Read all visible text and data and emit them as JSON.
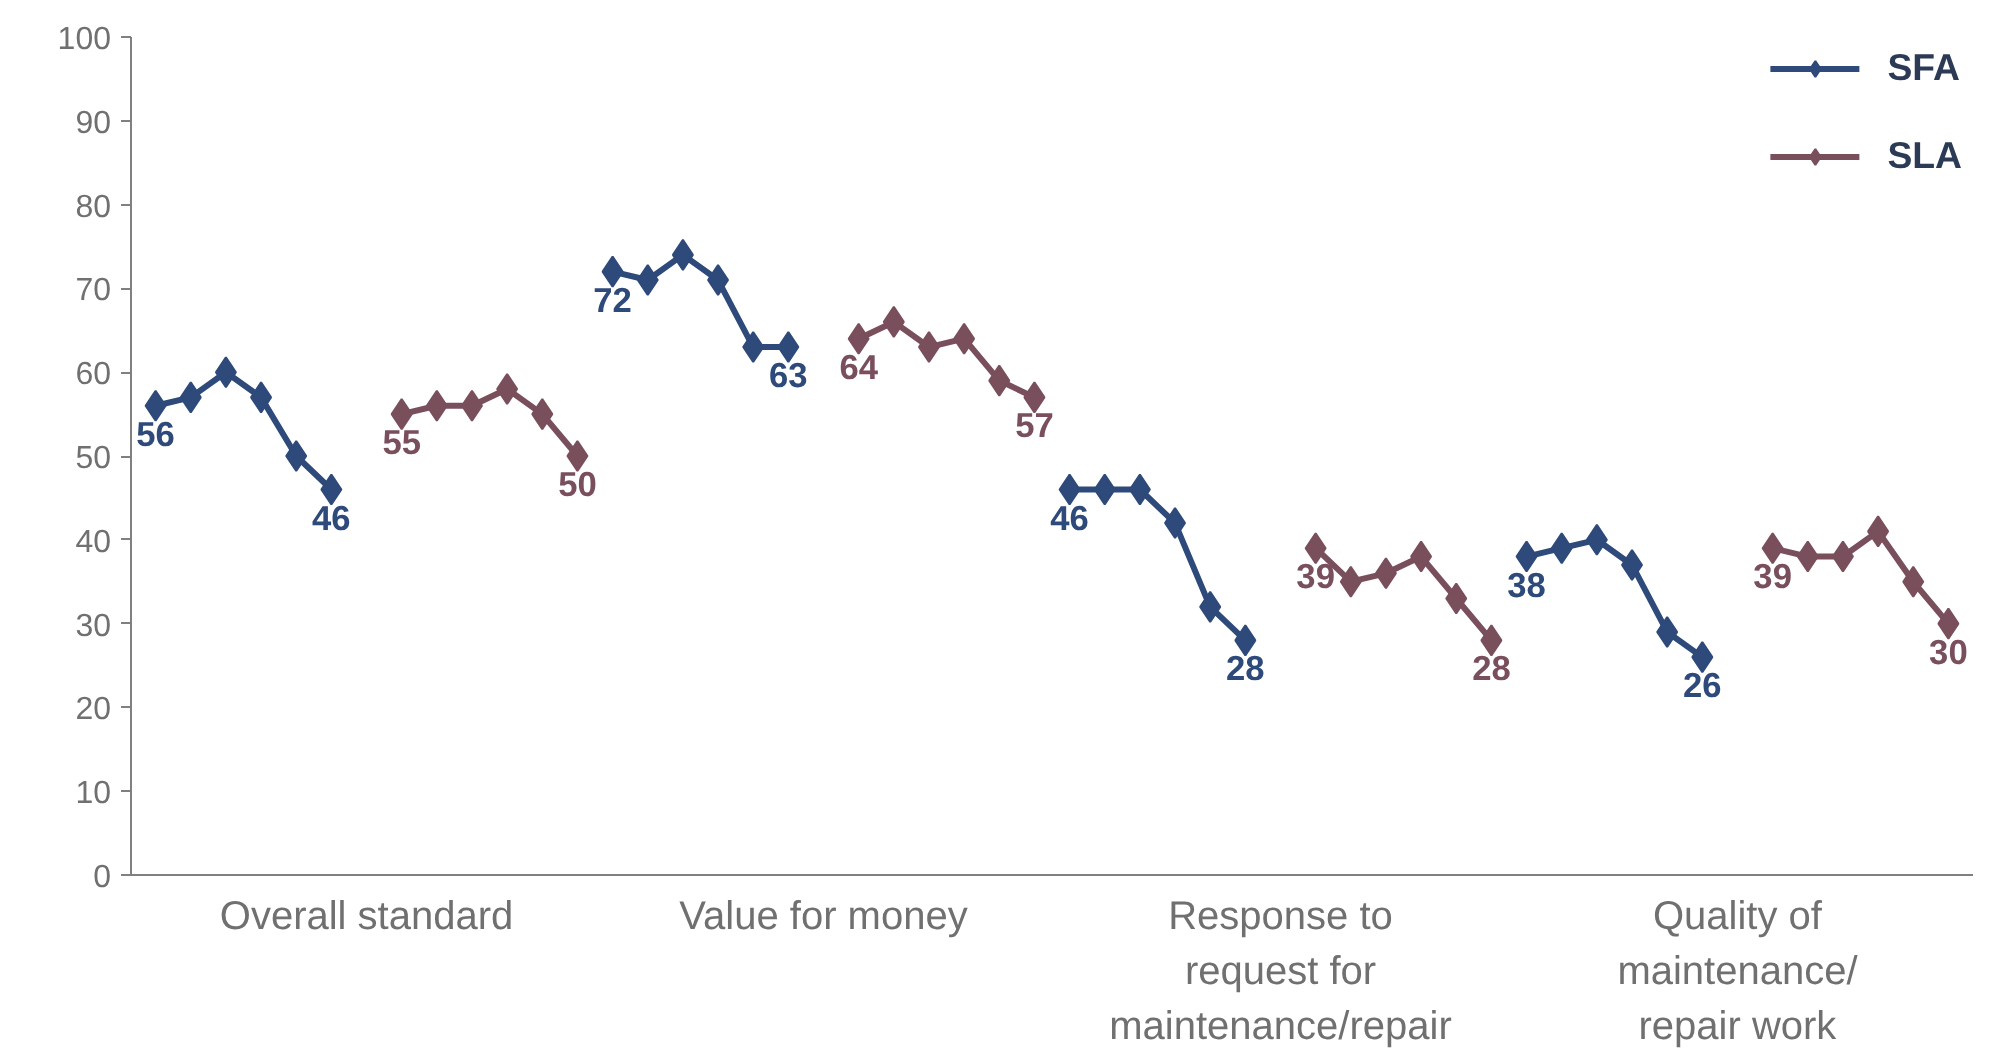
{
  "chart_data": {
    "type": "line",
    "categories": [
      null,
      null,
      null,
      null,
      null,
      null,
      "Overall standard",
      null,
      null,
      null,
      null,
      null,
      null,
      null,
      null,
      null,
      null,
      null,
      null,
      "Value for money",
      null,
      null,
      null,
      null,
      null,
      null,
      null,
      null,
      null,
      null,
      null,
      null,
      "Response to request for maintenance/repair",
      null,
      null,
      null,
      null,
      null,
      null,
      null,
      null,
      null,
      null,
      null,
      null,
      "Quality of maintenance/ repair work",
      null,
      null,
      null,
      null,
      null,
      null
    ],
    "ylim": [
      0,
      100
    ],
    "yticks": [
      0,
      10,
      20,
      30,
      40,
      50,
      60,
      70,
      80,
      90,
      100
    ],
    "marker": "diamond",
    "legend": "top right",
    "series": [
      {
        "name": "SFA",
        "color": "#2e4a7a",
        "values": [
          56,
          57,
          60,
          57,
          50,
          46,
          null,
          null,
          null,
          null,
          null,
          null,
          null,
          72,
          71,
          74,
          71,
          63,
          63,
          null,
          null,
          null,
          null,
          null,
          null,
          null,
          46,
          46,
          46,
          42,
          32,
          28,
          null,
          null,
          null,
          null,
          null,
          null,
          null,
          38,
          39,
          40,
          37,
          29,
          26,
          null,
          null,
          null,
          null,
          null,
          null,
          null
        ],
        "value_labels": [
          "56",
          null,
          null,
          null,
          null,
          "46",
          null,
          null,
          null,
          null,
          null,
          null,
          null,
          "72",
          null,
          null,
          null,
          null,
          "63",
          null,
          null,
          null,
          null,
          null,
          null,
          null,
          "46",
          null,
          null,
          null,
          null,
          "28",
          null,
          null,
          null,
          null,
          null,
          null,
          null,
          "38",
          null,
          null,
          null,
          null,
          "26",
          null,
          null,
          null,
          null,
          null,
          null,
          null
        ]
      },
      {
        "name": "SLA",
        "color": "#7a4f5c",
        "values": [
          null,
          null,
          null,
          null,
          null,
          null,
          null,
          55,
          56,
          56,
          58,
          55,
          50,
          null,
          null,
          null,
          null,
          null,
          null,
          null,
          64,
          66,
          63,
          64,
          59,
          57,
          null,
          null,
          null,
          null,
          null,
          null,
          null,
          39,
          35,
          36,
          38,
          33,
          28,
          null,
          null,
          null,
          null,
          null,
          null,
          null,
          39,
          38,
          38,
          41,
          35,
          30
        ],
        "value_labels": [
          null,
          null,
          null,
          null,
          null,
          null,
          null,
          "55",
          null,
          null,
          null,
          null,
          "50",
          null,
          null,
          null,
          null,
          null,
          null,
          null,
          "64",
          null,
          null,
          null,
          null,
          "57",
          null,
          null,
          null,
          null,
          null,
          null,
          null,
          "39",
          null,
          null,
          null,
          null,
          "28",
          null,
          null,
          null,
          null,
          null,
          null,
          null,
          "39",
          null,
          null,
          null,
          null,
          "30"
        ]
      }
    ]
  }
}
